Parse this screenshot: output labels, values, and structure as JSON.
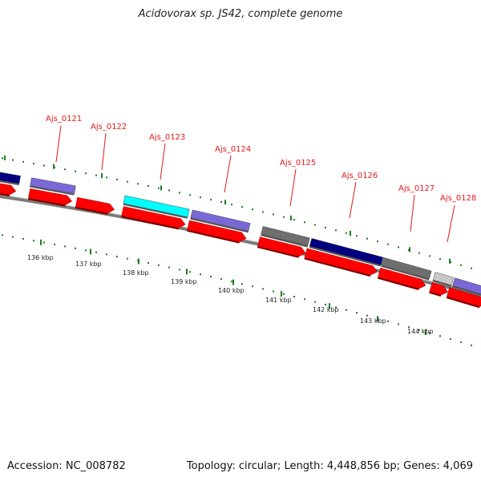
{
  "title": "Acidovorax sp. JS42, complete genome",
  "accession": "Accession: NC_008782",
  "summary": "Topology: circular; Length: 4,448,856 bp; Genes: 4,069",
  "colors": {
    "axis": "#8a8a8a",
    "tick_green": "#1e7b1e",
    "label_red": "#e0191b",
    "cds_red": "#ff0000",
    "gene_purple": "#7b68d8",
    "gene_cyan": "#00ffff",
    "gene_navy": "#000080",
    "gene_gray": "#6e6e6e",
    "gene_lightgray": "#c8c8c8"
  },
  "scale_ticks": [
    "136 kbp",
    "137 kbp",
    "138 kbp",
    "139 kbp",
    "140 kbp",
    "141 kbp",
    "142 kbp",
    "143 kbp",
    "144 kbp"
  ],
  "gene_labels": [
    "Ajs_0121",
    "Ajs_0122",
    "Ajs_0123",
    "Ajs_0124",
    "Ajs_0125",
    "Ajs_0126",
    "Ajs_0127",
    "Ajs_0128"
  ]
}
